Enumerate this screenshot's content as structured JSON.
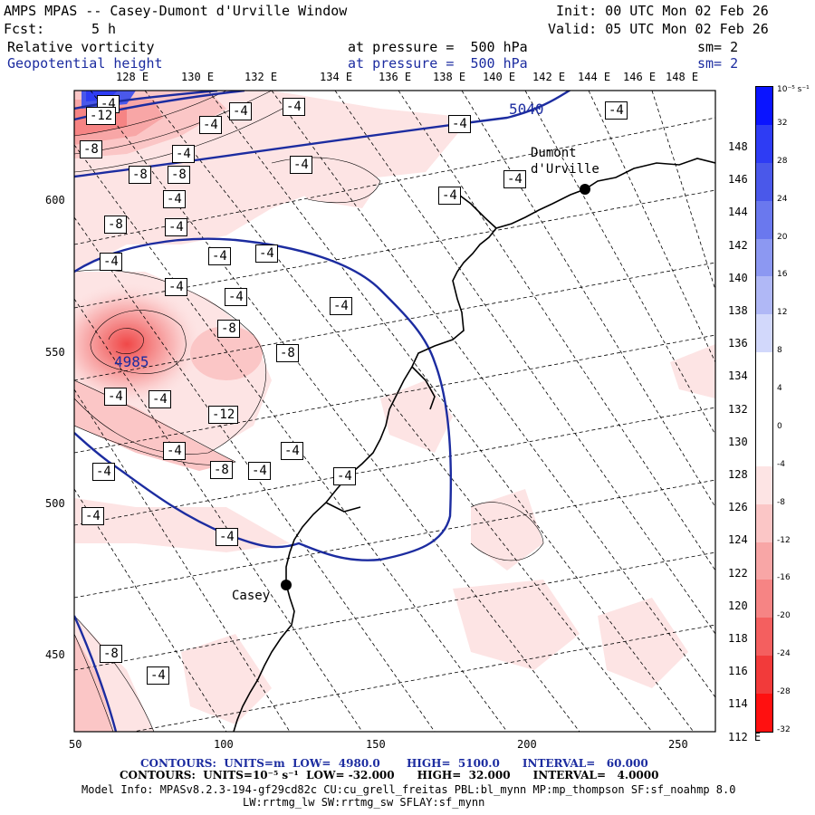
{
  "header": {
    "title": "AMPS MPAS -- Casey-Dumont d'Urville Window",
    "init": "Init: 00 UTC Mon 02 Feb 26",
    "fcst_label": "Fcst:",
    "fcst_value": "5 h",
    "valid": "Valid: 05 UTC Mon 02 Feb 26",
    "field1": {
      "name": "Relative vorticity",
      "pressure": "at pressure =  500 hPa",
      "sm": "sm= 2"
    },
    "field2": {
      "name": "Geopotential height",
      "pressure": "at pressure =  500 hPa",
      "sm": "sm= 2"
    }
  },
  "map": {
    "top_lon_labels": [
      "128 E",
      "130 E",
      "132 E",
      "134 E",
      "136 E",
      "138 E",
      "140 E",
      "142 E",
      "144 E",
      "146 E",
      "148 E"
    ],
    "right_lon_labels": [
      "148 E",
      "146 E",
      "144 E",
      "142 E",
      "140 E",
      "138 E",
      "136 E",
      "134 E",
      "132 E",
      "130 E",
      "128 E",
      "126 E",
      "124 E",
      "122 E",
      "120 E",
      "118 E",
      "116 E",
      "114 E",
      "112 E"
    ],
    "y_ticks": [
      "600",
      "550",
      "500",
      "450"
    ],
    "x_ticks": [
      "50",
      "100",
      "150",
      "200",
      "250"
    ],
    "stations": [
      {
        "name": "Casey"
      },
      {
        "name": "Dumont d'Urville"
      }
    ],
    "height_labels": [
      "5040",
      "4985"
    ],
    "vort_labels": [
      "-4",
      "-8",
      "-12",
      "-4",
      "-8",
      "-8",
      "-4",
      "-4",
      "-4",
      "-8",
      "-4",
      "-4",
      "-4",
      "-4",
      "-4",
      "-4",
      "-8",
      "-4",
      "-4",
      "-8",
      "-4",
      "-4",
      "-12",
      "-4",
      "-8",
      "-4",
      "-4",
      "-4",
      "-4",
      "-4",
      "-8",
      "-4",
      "-4",
      "-4"
    ]
  },
  "colorbar": {
    "unit": "10⁻⁵ s⁻¹",
    "labels": [
      "32",
      "28",
      "24",
      "20",
      "16",
      "12",
      "8",
      "4",
      "0",
      "-4",
      "-8",
      "-12",
      "-16",
      "-20",
      "-24",
      "-28",
      "-32"
    ],
    "colors": [
      "#0a14ff",
      "#2e3cf4",
      "#4a58ea",
      "#6a78ee",
      "#8c98f2",
      "#b0b8f6",
      "#d2d8fb",
      "#ffffff",
      "#ffffff",
      "#ffffff",
      "#fde4e4",
      "#fbc6c6",
      "#f8a6a6",
      "#f68484",
      "#f45f5f",
      "#f23a3a",
      "#ff1010"
    ]
  },
  "footer": {
    "line1_contours": "CONTOURS:  UNITS=m  LOW=  4980.0       HIGH=  5100.0      INTERVAL=   60.000",
    "line2_contours": "CONTOURS:  UNITS=10⁻⁵ s⁻¹  LOW= -32.000      HIGH=  32.000      INTERVAL=   4.0000",
    "model_info": "Model Info: MPASv8.2.3-194-gf29cd82c CU:cu_grell_freitas PBL:bl_mynn MP:mp_thompson SF:sf_noahmp 8.0",
    "model_info2": "LW:rrtmg_lw SW:rrtmg_sw SFLAY:sf_mynn"
  },
  "colors": {
    "height_contour": "#1c2ca0",
    "coast": "#000000"
  }
}
